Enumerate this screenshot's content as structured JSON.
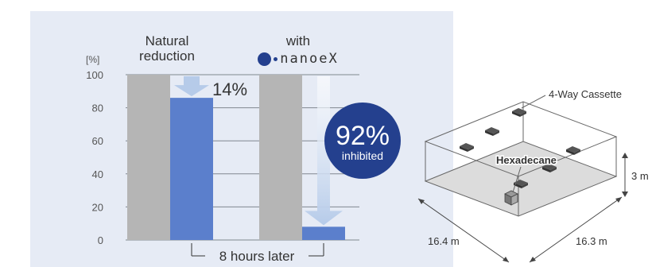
{
  "chart_data": {
    "type": "bar",
    "unit_label": "[%]",
    "ylim": [
      0,
      100
    ],
    "yticks": [
      0,
      20,
      40,
      60,
      80,
      100
    ],
    "groups": [
      {
        "header_lines": [
          "Natural",
          "reduction"
        ],
        "before": 100,
        "after": 86,
        "change_label": "14%"
      },
      {
        "header_lines": [
          "with"
        ],
        "logo_text": "nanoeX",
        "before": 100,
        "after": 8,
        "badge_value": "92%",
        "badge_text": "inhibited"
      }
    ],
    "xlabel": "8 hours later",
    "colors": {
      "before": "#b5b5b5",
      "after": "#5b7fcc",
      "arrow": "#b6cbe9",
      "badge": "#24408e",
      "grid": "#808890"
    }
  },
  "room": {
    "ceiling_unit_label": "4-Way Cassette",
    "source_label": "Hexadecane",
    "height_label": "3 m",
    "depth_label": "16.4 m",
    "width_label": "16.3 m"
  },
  "icons": {
    "logo": "nanoe-dot-logo",
    "arrow": "down-arrow-icon"
  }
}
